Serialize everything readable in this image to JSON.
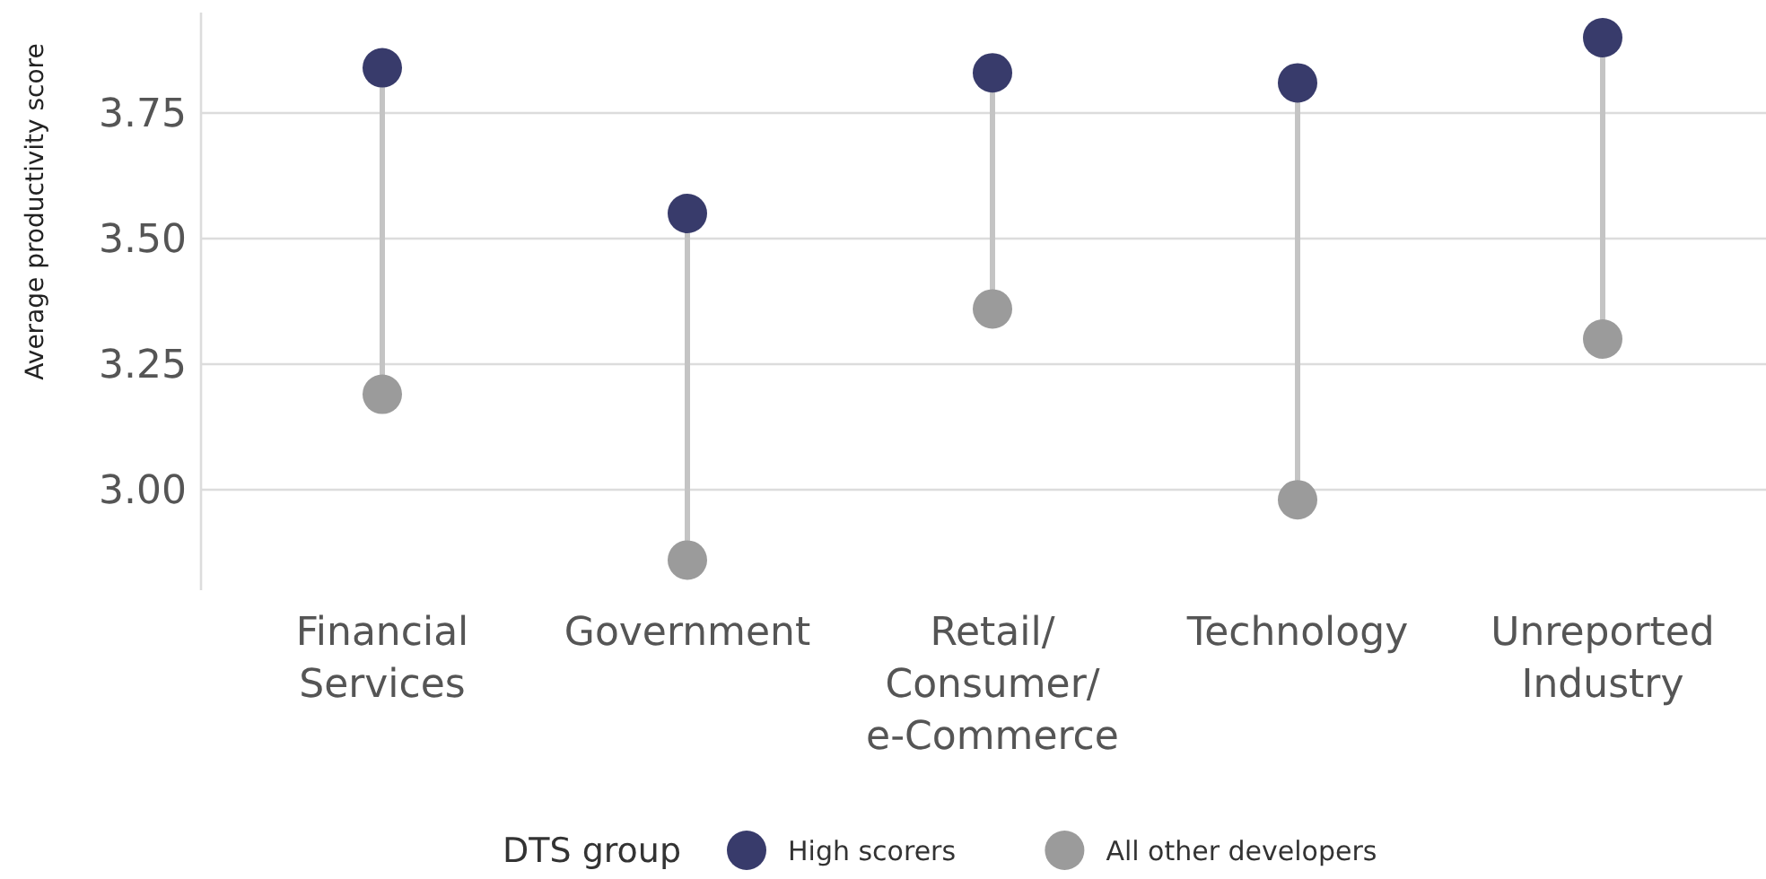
{
  "chart_data": {
    "type": "scatter",
    "ylabel": "Average productivity score",
    "categories": [
      "Financial Services",
      "Government",
      "Retail/Consumer/e-Commerce",
      "Technology",
      "Unreported Industry"
    ],
    "series": [
      {
        "name": "High scorers",
        "color": "#383b6b",
        "values": [
          3.84,
          3.55,
          3.83,
          3.81,
          3.9
        ]
      },
      {
        "name": "All other developers",
        "color": "#9b9b9b",
        "values": [
          3.19,
          2.86,
          3.36,
          2.98,
          3.3
        ]
      }
    ],
    "ylim": [
      2.8,
      3.95
    ],
    "yticks": [
      {
        "value": 3,
        "label": "3.00"
      },
      {
        "value": 3.25,
        "label": "3.25"
      },
      {
        "value": 3.5,
        "label": "3.50"
      },
      {
        "value": 3.75,
        "label": "3.75"
      }
    ],
    "grid": "y",
    "legend": "bottom",
    "legend_title": "DTS group",
    "marker": "circle"
  }
}
